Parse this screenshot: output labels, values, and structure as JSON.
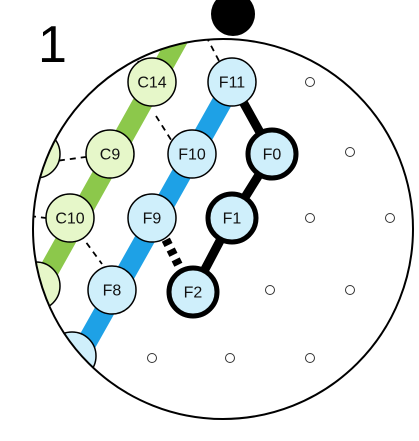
{
  "figure": {
    "panel_label": "1"
  },
  "colors": {
    "green_node_fill": "#E6F7C9",
    "blue_node_fill": "#CFEFFB",
    "green_band": "#8CC84B",
    "blue_band": "#1EA1E6",
    "outline": "#000000"
  },
  "nodes": [
    {
      "id": "C14",
      "label": "C14",
      "group": "green",
      "thick": false
    },
    {
      "id": "C9",
      "label": "C9",
      "group": "green",
      "thick": false
    },
    {
      "id": "C10",
      "label": "C10",
      "group": "green",
      "thick": false
    },
    {
      "id": "F11",
      "label": "F11",
      "group": "blue",
      "thick": false
    },
    {
      "id": "F10",
      "label": "F10",
      "group": "blue",
      "thick": false
    },
    {
      "id": "F9",
      "label": "F9",
      "group": "blue",
      "thick": false
    },
    {
      "id": "F8",
      "label": "F8",
      "group": "blue",
      "thick": false
    },
    {
      "id": "F0",
      "label": "F0",
      "group": "blue",
      "thick": true
    },
    {
      "id": "F1",
      "label": "F1",
      "group": "blue",
      "thick": true
    },
    {
      "id": "F2",
      "label": "F2",
      "group": "blue",
      "thick": true
    }
  ]
}
